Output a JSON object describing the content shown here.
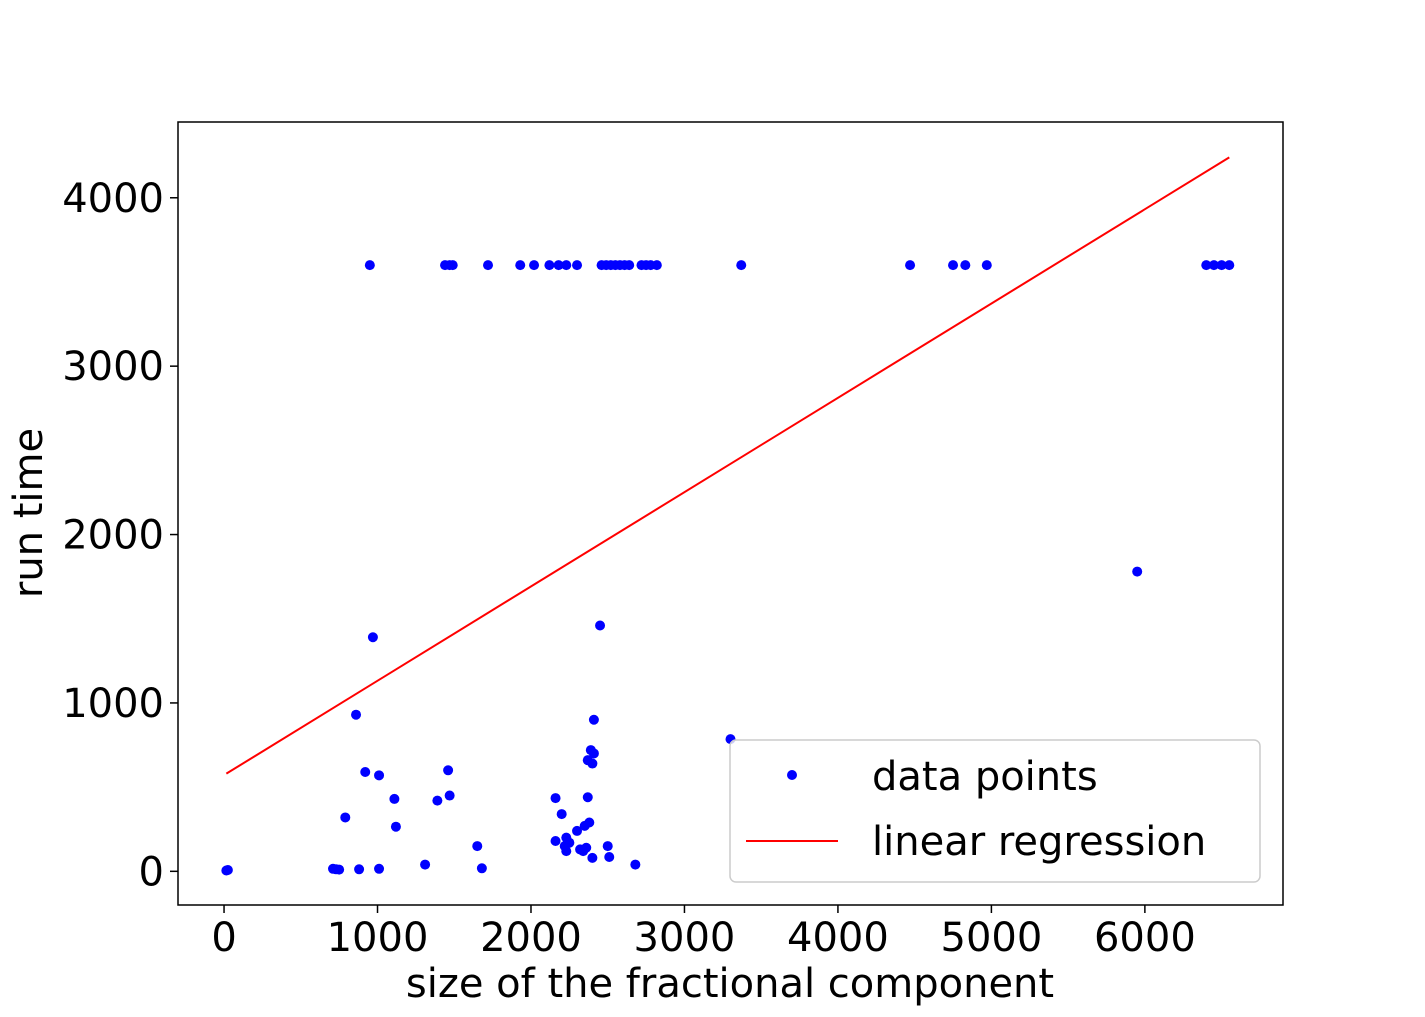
{
  "chart_data": {
    "type": "scatter",
    "title": "",
    "xlabel": "size of the fractional component",
    "ylabel": "run time",
    "xlim": [
      -300,
      6900
    ],
    "ylim": [
      -200,
      4450
    ],
    "xticks": [
      0,
      1000,
      2000,
      3000,
      4000,
      5000,
      6000
    ],
    "yticks": [
      0,
      1000,
      2000,
      3000,
      4000
    ],
    "grid": false,
    "legend_position": "lower-right",
    "colors": {
      "points": "#0000ff",
      "regression": "#ff0000",
      "frame": "#000000",
      "legend_border": "#cccccc"
    },
    "series": [
      {
        "name": "data points",
        "kind": "scatter",
        "points": [
          [
            15,
            5
          ],
          [
            25,
            8
          ],
          [
            710,
            15
          ],
          [
            730,
            12
          ],
          [
            750,
            10
          ],
          [
            880,
            12
          ],
          [
            1010,
            15
          ],
          [
            1310,
            40
          ],
          [
            1680,
            18
          ],
          [
            2680,
            40
          ],
          [
            790,
            320
          ],
          [
            860,
            930
          ],
          [
            920,
            590
          ],
          [
            1010,
            570
          ],
          [
            1110,
            430
          ],
          [
            1120,
            265
          ],
          [
            1390,
            420
          ],
          [
            1460,
            600
          ],
          [
            1470,
            450
          ],
          [
            1650,
            150
          ],
          [
            970,
            1390
          ],
          [
            2160,
            435
          ],
          [
            2160,
            180
          ],
          [
            2200,
            340
          ],
          [
            2220,
            150
          ],
          [
            2230,
            120
          ],
          [
            2230,
            200
          ],
          [
            2250,
            170
          ],
          [
            2300,
            240
          ],
          [
            2320,
            130
          ],
          [
            2340,
            120
          ],
          [
            2350,
            270
          ],
          [
            2360,
            140
          ],
          [
            2370,
            660
          ],
          [
            2370,
            440
          ],
          [
            2380,
            290
          ],
          [
            2390,
            720
          ],
          [
            2400,
            80
          ],
          [
            2400,
            640
          ],
          [
            2410,
            900
          ],
          [
            2410,
            700
          ],
          [
            2450,
            1460
          ],
          [
            2500,
            150
          ],
          [
            2510,
            85
          ],
          [
            3300,
            785
          ],
          [
            5950,
            1780
          ],
          [
            950,
            3600
          ],
          [
            1440,
            3600
          ],
          [
            1470,
            3600
          ],
          [
            1490,
            3600
          ],
          [
            1720,
            3600
          ],
          [
            1930,
            3600
          ],
          [
            2020,
            3600
          ],
          [
            2120,
            3600
          ],
          [
            2180,
            3600
          ],
          [
            2230,
            3600
          ],
          [
            2300,
            3600
          ],
          [
            2460,
            3600
          ],
          [
            2490,
            3600
          ],
          [
            2520,
            3600
          ],
          [
            2550,
            3600
          ],
          [
            2580,
            3600
          ],
          [
            2610,
            3600
          ],
          [
            2640,
            3600
          ],
          [
            2720,
            3600
          ],
          [
            2750,
            3600
          ],
          [
            2780,
            3600
          ],
          [
            2820,
            3600
          ],
          [
            3370,
            3600
          ],
          [
            4470,
            3600
          ],
          [
            4750,
            3600
          ],
          [
            4830,
            3600
          ],
          [
            4970,
            3600
          ],
          [
            6400,
            3600
          ],
          [
            6450,
            3600
          ],
          [
            6500,
            3600
          ],
          [
            6550,
            3600
          ]
        ]
      },
      {
        "name": "linear regression",
        "kind": "line",
        "points": [
          [
            15,
            580
          ],
          [
            6550,
            4240
          ]
        ]
      }
    ]
  }
}
